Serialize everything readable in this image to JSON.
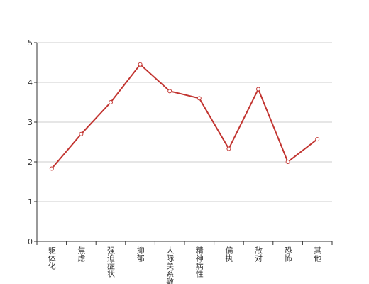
{
  "chart_data": {
    "type": "line",
    "categories": [
      "躯体化",
      "焦虑",
      "强迫症状",
      "抑郁",
      "人际关系敏感",
      "精神病性",
      "偏执",
      "敌对",
      "恐怖",
      "其他"
    ],
    "series": [
      {
        "color": "#c23531",
        "values": [
          1.83,
          2.7,
          3.5,
          4.45,
          3.78,
          3.6,
          2.33,
          3.83,
          2.0,
          2.57
        ]
      }
    ],
    "ylim": [
      0,
      5
    ],
    "yticks": [
      0,
      1,
      2,
      3,
      4,
      5
    ],
    "grid": true
  }
}
